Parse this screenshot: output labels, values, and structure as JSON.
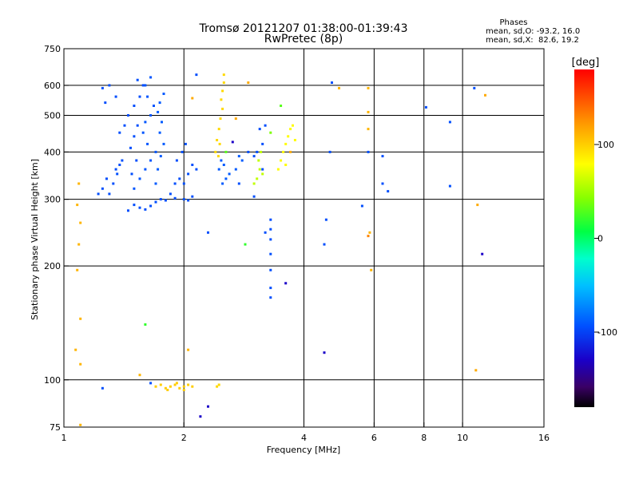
{
  "chart_data": {
    "type": "scatter",
    "title": "Tromsø 20121207 01:38:00-01:39:43",
    "subtitle": "RwPretec (8p)",
    "xlabel": "Frequency [MHz]",
    "ylabel": "Stationary phase Virtual Height [km]",
    "x_scale": "log2",
    "y_scale": "log",
    "xlim": [
      1,
      16
    ],
    "ylim": [
      75,
      750
    ],
    "x_ticks": [
      1,
      2,
      4,
      6,
      8,
      10,
      16
    ],
    "y_ticks": [
      75,
      100,
      200,
      300,
      400,
      500,
      600,
      750
    ],
    "x_gridlines": [
      2,
      4,
      6,
      8,
      10
    ],
    "y_gridlines": [
      100,
      200,
      300,
      400,
      500,
      600
    ],
    "grid": true,
    "stats": {
      "heading": "Phases",
      "o_line": "mean, sd,O: -93.2, 16.0",
      "x_line": "mean, sd,X:  82.6, 19.2"
    },
    "colorbar": {
      "label": "[deg]",
      "min": -180,
      "max": 180,
      "ticks": [
        100,
        0,
        -100
      ],
      "placement": "right"
    },
    "series": [
      {
        "points": [
          [
            1.45,
            280,
            -95
          ],
          [
            1.5,
            290,
            -95
          ],
          [
            1.55,
            285,
            -95
          ],
          [
            1.6,
            282,
            -95
          ],
          [
            1.65,
            288,
            -95
          ],
          [
            1.7,
            295,
            -95
          ],
          [
            1.75,
            300,
            -95
          ],
          [
            1.8,
            298,
            -95
          ],
          [
            1.9,
            302,
            -95
          ],
          [
            2.0,
            300,
            -95
          ],
          [
            2.05,
            298,
            -95
          ],
          [
            2.1,
            305,
            -95
          ],
          [
            1.5,
            320,
            -92
          ],
          [
            1.55,
            340,
            -92
          ],
          [
            1.6,
            360,
            -92
          ],
          [
            1.65,
            380,
            -92
          ],
          [
            1.7,
            400,
            -92
          ],
          [
            1.62,
            420,
            -92
          ],
          [
            1.58,
            450,
            -92
          ],
          [
            1.6,
            480,
            -92
          ],
          [
            1.65,
            500,
            -92
          ],
          [
            1.68,
            530,
            -92
          ],
          [
            1.62,
            560,
            -92
          ],
          [
            1.6,
            600,
            -92
          ],
          [
            1.65,
            630,
            -92
          ],
          [
            1.48,
            350,
            -95
          ],
          [
            1.52,
            380,
            -95
          ],
          [
            1.47,
            410,
            -95
          ],
          [
            1.5,
            440,
            -95
          ],
          [
            1.53,
            470,
            -95
          ],
          [
            1.45,
            500,
            -95
          ],
          [
            1.5,
            530,
            -95
          ],
          [
            1.55,
            560,
            -95
          ],
          [
            1.58,
            600,
            -95
          ],
          [
            1.53,
            620,
            -95
          ],
          [
            1.7,
            330,
            -90
          ],
          [
            1.72,
            360,
            -90
          ],
          [
            1.75,
            390,
            -90
          ],
          [
            1.78,
            420,
            -90
          ],
          [
            1.74,
            450,
            -90
          ],
          [
            1.76,
            480,
            -90
          ],
          [
            1.72,
            510,
            -90
          ],
          [
            1.74,
            540,
            -90
          ],
          [
            1.78,
            570,
            -90
          ],
          [
            1.85,
            310,
            -95
          ],
          [
            1.9,
            330,
            -95
          ],
          [
            1.95,
            340,
            -95
          ],
          [
            2.0,
            330,
            -95
          ],
          [
            2.05,
            350,
            -95
          ],
          [
            2.1,
            370,
            -95
          ],
          [
            2.15,
            360,
            -95
          ],
          [
            1.92,
            380,
            -95
          ],
          [
            1.98,
            400,
            -95
          ],
          [
            2.02,
            420,
            -95
          ],
          [
            1.3,
            310,
            -95
          ],
          [
            1.33,
            330,
            -95
          ],
          [
            1.36,
            350,
            -95
          ],
          [
            1.38,
            370,
            -95
          ],
          [
            1.4,
            380,
            -95
          ],
          [
            1.35,
            360,
            -95
          ],
          [
            1.28,
            340,
            -95
          ],
          [
            1.25,
            320,
            -95
          ],
          [
            1.22,
            310,
            -95
          ],
          [
            1.35,
            560,
            -95
          ],
          [
            1.3,
            600,
            -95
          ],
          [
            1.25,
            590,
            -95
          ],
          [
            1.27,
            540,
            -95
          ],
          [
            1.38,
            450,
            -95
          ],
          [
            1.42,
            470,
            -95
          ],
          [
            2.5,
            330,
            -90
          ],
          [
            2.55,
            340,
            -90
          ],
          [
            2.6,
            350,
            -90
          ],
          [
            2.45,
            360,
            -90
          ],
          [
            2.48,
            380,
            -90
          ],
          [
            2.52,
            370,
            -90
          ],
          [
            2.7,
            360,
            -90
          ],
          [
            2.8,
            380,
            -90
          ],
          [
            2.75,
            390,
            -90
          ],
          [
            3.3,
            265,
            -95
          ],
          [
            3.3,
            250,
            -95
          ],
          [
            3.3,
            235,
            -95
          ],
          [
            3.3,
            215,
            -95
          ],
          [
            3.3,
            195,
            -95
          ],
          [
            3.3,
            175,
            -95
          ],
          [
            3.3,
            165,
            -95
          ],
          [
            3.2,
            245,
            -95
          ],
          [
            2.75,
            330,
            -95
          ],
          [
            2.9,
            400,
            -95
          ],
          [
            3.15,
            420,
            -95
          ],
          [
            3.1,
            460,
            -95
          ],
          [
            3.2,
            470,
            -95
          ],
          [
            3.05,
            400,
            -95
          ],
          [
            3.0,
            390,
            -95
          ],
          [
            1.25,
            95,
            -95
          ],
          [
            1.65,
            98,
            -95
          ],
          [
            4.7,
            610,
            -95
          ],
          [
            5.8,
            400,
            -95
          ],
          [
            4.65,
            400,
            -95
          ],
          [
            4.55,
            265,
            -95
          ],
          [
            4.5,
            228,
            -95
          ],
          [
            5.6,
            288,
            -95
          ],
          [
            6.3,
            390,
            -95
          ],
          [
            6.5,
            315,
            -95
          ],
          [
            6.3,
            330,
            -95
          ],
          [
            8.1,
            525,
            -95
          ],
          [
            9.3,
            480,
            -95
          ],
          [
            9.3,
            325,
            -95
          ],
          [
            10.7,
            590,
            -95
          ],
          [
            2.15,
            640,
            -95
          ],
          [
            2.3,
            245,
            -95
          ],
          [
            3.0,
            305,
            -95
          ],
          [
            3.15,
            360,
            -95
          ]
        ]
      },
      {
        "points": [
          [
            2.4,
            400,
            95
          ],
          [
            2.42,
            430,
            95
          ],
          [
            2.45,
            460,
            95
          ],
          [
            2.47,
            490,
            95
          ],
          [
            2.5,
            520,
            95
          ],
          [
            2.48,
            550,
            95
          ],
          [
            2.5,
            580,
            95
          ],
          [
            2.52,
            610,
            95
          ],
          [
            2.52,
            640,
            95
          ],
          [
            2.46,
            420,
            95
          ],
          [
            2.44,
            390,
            95
          ],
          [
            3.05,
            340,
            60
          ],
          [
            3.1,
            360,
            60
          ],
          [
            3.08,
            380,
            60
          ],
          [
            3.12,
            400,
            60
          ],
          [
            3.0,
            330,
            60
          ],
          [
            3.15,
            350,
            60
          ],
          [
            3.5,
            380,
            80
          ],
          [
            3.55,
            400,
            80
          ],
          [
            3.6,
            420,
            80
          ],
          [
            3.65,
            440,
            80
          ],
          [
            3.7,
            460,
            80
          ],
          [
            3.75,
            470,
            80
          ],
          [
            3.8,
            430,
            80
          ],
          [
            3.6,
            370,
            80
          ],
          [
            3.45,
            360,
            80
          ],
          [
            1.7,
            96,
            100
          ],
          [
            1.75,
            97,
            100
          ],
          [
            1.8,
            95,
            100
          ],
          [
            1.85,
            96,
            100
          ],
          [
            1.9,
            97,
            100
          ],
          [
            1.95,
            95,
            100
          ],
          [
            2.0,
            96,
            100
          ],
          [
            2.05,
            97,
            100
          ],
          [
            2.1,
            96,
            100
          ],
          [
            1.82,
            94,
            100
          ],
          [
            1.92,
            98,
            100
          ],
          [
            2.0,
            94,
            100
          ],
          [
            2.42,
            96,
            95
          ],
          [
            2.45,
            97,
            95
          ],
          [
            1.09,
            330,
            110
          ],
          [
            1.08,
            290,
            110
          ],
          [
            1.1,
            260,
            110
          ],
          [
            1.09,
            228,
            110
          ],
          [
            1.08,
            195,
            110
          ],
          [
            1.1,
            145,
            110
          ],
          [
            1.07,
            120,
            110
          ],
          [
            1.1,
            110,
            110
          ],
          [
            1.1,
            76,
            110
          ],
          [
            1.55,
            103,
            110
          ],
          [
            2.05,
            120,
            110
          ],
          [
            5.8,
            460,
            110
          ],
          [
            5.8,
            510,
            110
          ],
          [
            5.8,
            590,
            110
          ],
          [
            5.9,
            195,
            110
          ],
          [
            5.85,
            245,
            110
          ],
          [
            10.9,
            290,
            115
          ],
          [
            10.8,
            106,
            115
          ],
          [
            11.4,
            565,
            115
          ],
          [
            2.9,
            610,
            115
          ],
          [
            3.7,
            400,
            115
          ],
          [
            2.7,
            490,
            115
          ],
          [
            2.1,
            555,
            115
          ]
        ]
      },
      {
        "points": [
          [
            1.6,
            140,
            20
          ],
          [
            2.85,
            228,
            20
          ],
          [
            3.5,
            530,
            30
          ],
          [
            2.55,
            400,
            30
          ],
          [
            3.3,
            450,
            40
          ],
          [
            4.9,
            590,
            110
          ],
          [
            5.8,
            240,
            130
          ]
        ]
      },
      {
        "points": [
          [
            4.5,
            118,
            -130
          ],
          [
            3.6,
            180,
            -130
          ],
          [
            11.2,
            215,
            -130
          ],
          [
            2.3,
            85,
            -130
          ],
          [
            2.2,
            80,
            -130
          ],
          [
            2.65,
            425,
            -130
          ]
        ]
      }
    ]
  }
}
